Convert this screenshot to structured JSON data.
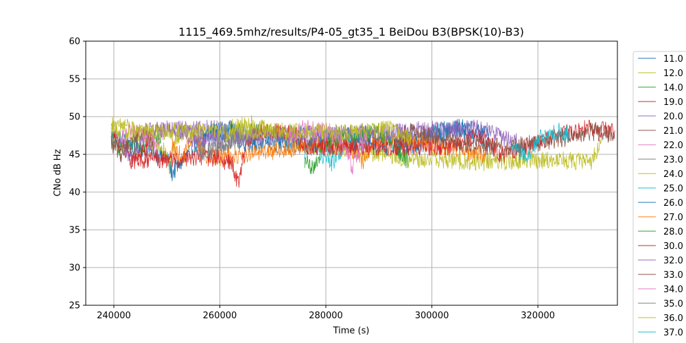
{
  "chart_data": {
    "type": "line",
    "title": "1115_469.5mhz/results/P4-05_gt35_1 BeiDou B3(BPSK(10)-B3)",
    "xlabel": "Time (s)",
    "ylabel": "CNo dB Hz",
    "xlim": [
      234700,
      335000
    ],
    "ylim": [
      25,
      60
    ],
    "xticks": [
      "240000",
      "260000",
      "280000",
      "300000",
      "320000"
    ],
    "xtick_values": [
      240000,
      260000,
      280000,
      300000,
      320000
    ],
    "yticks": [
      "25",
      "30",
      "35",
      "40",
      "45",
      "50",
      "55",
      "60"
    ],
    "ytick_values": [
      25,
      30,
      35,
      40,
      45,
      50,
      55,
      60
    ],
    "grid": true,
    "legend_position": "right-outside",
    "series": [
      {
        "name": "11.0",
        "color": "#1f77b4",
        "points": [
          [
            239500,
            47.5
          ],
          [
            250000,
            44.5
          ],
          [
            251000,
            42.5
          ],
          [
            257000,
            47.5
          ],
          [
            262000,
            48.0
          ],
          [
            298000,
            47.0
          ],
          [
            305000,
            48.5
          ],
          [
            311000,
            48.0
          ]
        ]
      },
      {
        "name": "12.0",
        "color": "#bcbd22",
        "points": [
          [
            239500,
            48.0
          ],
          [
            242000,
            49.0
          ],
          [
            246000,
            47.0
          ],
          [
            249500,
            45.5
          ],
          [
            250500,
            43.5
          ],
          [
            252000,
            47.5
          ],
          [
            256000,
            48.0
          ]
        ]
      },
      {
        "name": "14.0",
        "color": "#2ca02c",
        "points": [
          [
            239500,
            47.0
          ],
          [
            241000,
            46.0
          ],
          [
            243000,
            45.5
          ],
          [
            246000,
            46.5
          ],
          [
            249000,
            47.5
          ]
        ]
      },
      {
        "name": "19.0",
        "color": "#d62728",
        "points": [
          [
            240000,
            47.0
          ],
          [
            242500,
            45.5
          ],
          [
            244000,
            44.0
          ],
          [
            247000,
            47.0
          ]
        ]
      },
      {
        "name": "20.0",
        "color": "#9467bd",
        "points": [
          [
            241000,
            47.0
          ],
          [
            243500,
            44.5
          ],
          [
            246000,
            48.0
          ],
          [
            260000,
            48.5
          ],
          [
            262000,
            47.5
          ]
        ]
      },
      {
        "name": "21.0",
        "color": "#8c564b",
        "points": [
          [
            239500,
            46.5
          ],
          [
            241500,
            45.0
          ],
          [
            243000,
            47.0
          ],
          [
            246000,
            48.0
          ],
          [
            247500,
            46.0
          ]
        ]
      },
      {
        "name": "22.0",
        "color": "#e377c2",
        "points": [
          [
            241500,
            47.0
          ],
          [
            244000,
            48.5
          ],
          [
            248000,
            46.0
          ],
          [
            250000,
            48.5
          ]
        ]
      },
      {
        "name": "23.0",
        "color": "#7f7f7f",
        "points": [
          [
            259000,
            45.5
          ],
          [
            262000,
            46.5
          ],
          [
            266000,
            47.5
          ],
          [
            268000,
            46.0
          ]
        ]
      },
      {
        "name": "24.0",
        "color": "#bcbd22",
        "points": [
          [
            262000,
            48.5
          ],
          [
            266000,
            49.0
          ],
          [
            270000,
            48.0
          ],
          [
            276000,
            46.5
          ],
          [
            295000,
            44.5
          ],
          [
            310000,
            44.0
          ],
          [
            322000,
            44.3
          ],
          [
            330000,
            44.0
          ],
          [
            332000,
            46.5
          ]
        ]
      },
      {
        "name": "25.0",
        "color": "#17becf",
        "points": [
          [
            276000,
            45.5
          ],
          [
            278000,
            46.0
          ],
          [
            281000,
            43.8
          ],
          [
            284000,
            46.5
          ],
          [
            286000,
            47.0
          ]
        ]
      },
      {
        "name": "26.0",
        "color": "#1f77b4",
        "points": [
          [
            256000,
            46.0
          ],
          [
            258000,
            48.0
          ],
          [
            262000,
            48.5
          ],
          [
            264000,
            46.5
          ],
          [
            298000,
            46.0
          ],
          [
            300000,
            48.0
          ],
          [
            305000,
            48.5
          ],
          [
            308000,
            47.5
          ],
          [
            311000,
            46.0
          ]
        ]
      },
      {
        "name": "27.0",
        "color": "#ff7f0e",
        "points": [
          [
            251000,
            46.0
          ],
          [
            253000,
            44.5
          ],
          [
            255000,
            47.5
          ],
          [
            257000,
            45.0
          ],
          [
            260000,
            44.5
          ],
          [
            277000,
            46.0
          ],
          [
            281000,
            47.0
          ],
          [
            285000,
            45.5
          ],
          [
            287000,
            44.0
          ],
          [
            289000,
            47.0
          ],
          [
            295000,
            47.0
          ],
          [
            302000,
            46.0
          ],
          [
            310000,
            45.0
          ]
        ]
      },
      {
        "name": "28.0",
        "color": "#2ca02c",
        "points": [
          [
            276000,
            44.0
          ],
          [
            277500,
            43.0
          ],
          [
            280000,
            47.0
          ],
          [
            285000,
            47.5
          ],
          [
            290000,
            48.0
          ],
          [
            293000,
            46.0
          ],
          [
            295500,
            44.0
          ]
        ]
      },
      {
        "name": "30.0",
        "color": "#d62728",
        "points": [
          [
            243000,
            44.2
          ],
          [
            260000,
            44.5
          ],
          [
            262500,
            43.5
          ],
          [
            263500,
            41.0
          ],
          [
            265000,
            46.5
          ],
          [
            268000,
            48.0
          ],
          [
            274000,
            48.0
          ],
          [
            276000,
            46.0
          ],
          [
            303000,
            46.0
          ],
          [
            309000,
            47.5
          ],
          [
            313000,
            45.0
          ],
          [
            326000,
            48.0
          ],
          [
            330000,
            48.5
          ],
          [
            334500,
            48.0
          ]
        ]
      },
      {
        "name": "32.0",
        "color": "#9467bd",
        "points": [
          [
            247000,
            48.0
          ],
          [
            252000,
            48.5
          ],
          [
            255000,
            47.0
          ],
          [
            309000,
            48.5
          ],
          [
            314000,
            47.0
          ],
          [
            317000,
            46.5
          ]
        ]
      },
      {
        "name": "33.0",
        "color": "#8c564b",
        "points": [
          [
            293000,
            47.0
          ],
          [
            296000,
            48.0
          ],
          [
            300000,
            47.5
          ],
          [
            305000,
            46.5
          ],
          [
            310000,
            46.0
          ],
          [
            315000,
            46.0
          ],
          [
            320000,
            46.5
          ],
          [
            324000,
            47.0
          ],
          [
            327000,
            47.5
          ],
          [
            330000,
            48.0
          ],
          [
            334500,
            47.5
          ]
        ]
      },
      {
        "name": "34.0",
        "color": "#e377c2",
        "points": [
          [
            273000,
            47.5
          ],
          [
            276000,
            48.5
          ],
          [
            280000,
            48.0
          ],
          [
            283000,
            46.5
          ],
          [
            285000,
            43.5
          ],
          [
            286500,
            46.0
          ],
          [
            288000,
            47.0
          ]
        ]
      },
      {
        "name": "35.0",
        "color": "#7f7f7f",
        "points": [
          [
            256000,
            45.0
          ],
          [
            258000,
            45.5
          ],
          [
            262000,
            47.0
          ],
          [
            264000,
            47.5
          ]
        ]
      },
      {
        "name": "36.0",
        "color": "#bcbd22",
        "points": [
          [
            239500,
            49.0
          ],
          [
            241000,
            48.0
          ],
          [
            242500,
            48.0
          ],
          [
            289000,
            48.0
          ],
          [
            293000,
            48.5
          ],
          [
            296000,
            47.0
          ]
        ]
      },
      {
        "name": "37.0",
        "color": "#17becf",
        "points": [
          [
            315000,
            46.0
          ],
          [
            318000,
            44.5
          ],
          [
            320000,
            47.0
          ],
          [
            324000,
            48.0
          ],
          [
            326000,
            47.5
          ]
        ]
      }
    ]
  }
}
